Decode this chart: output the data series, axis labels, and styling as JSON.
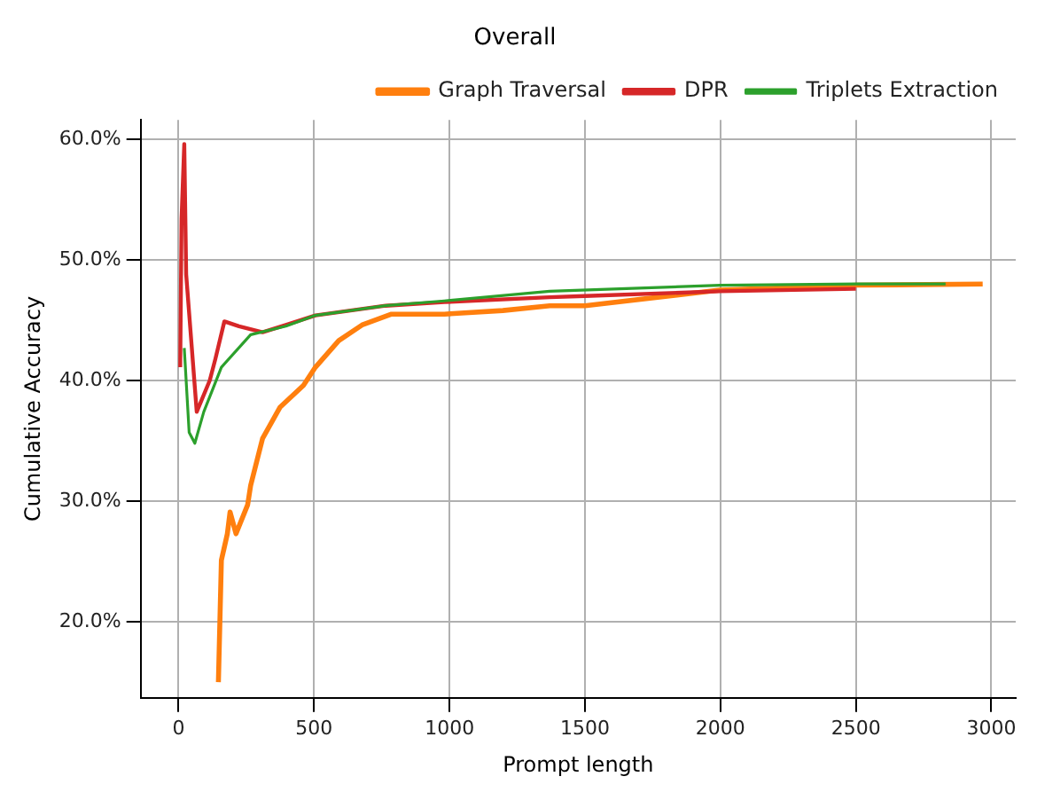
{
  "chart_data": {
    "type": "line",
    "title": "Overall",
    "xlabel": "Prompt length",
    "ylabel": "Cumulative Accuracy",
    "xlim": [
      -140,
      3090
    ],
    "xticks": [
      0,
      500,
      1000,
      1500,
      2000,
      2500,
      3000
    ],
    "ylim": [
      13.7,
      61.6
    ],
    "yticks": [
      {
        "value": 20,
        "label": "20.0%"
      },
      {
        "value": 30,
        "label": "30.0%"
      },
      {
        "value": 40,
        "label": "40.0%"
      },
      {
        "value": 50,
        "label": "50.0%"
      },
      {
        "value": 60,
        "label": "60.0%"
      }
    ],
    "grid": true,
    "legend": "top right",
    "marker": "none",
    "line_style": "solid",
    "series": [
      {
        "name": "Graph Traversal",
        "color": "#ff7f0e",
        "x": [
          147,
          158,
          180,
          190,
          212,
          255,
          266,
          310,
          375,
          461,
          505,
          591,
          677,
          786,
          981,
          1197,
          1370,
          1500,
          1998,
          2506,
          2968
        ],
        "values": [
          15.0,
          25.1,
          27.3,
          29.1,
          27.3,
          29.7,
          31.3,
          35.2,
          37.8,
          39.6,
          41.1,
          43.3,
          44.6,
          45.5,
          45.5,
          45.8,
          46.2,
          46.2,
          47.5,
          47.9,
          48.0
        ]
      },
      {
        "name": "DPR",
        "color": "#d62728",
        "x": [
          6,
          11,
          21,
          28,
          67,
          115,
          136,
          169,
          223,
          310,
          396,
          505,
          764,
          981,
          1370,
          1500,
          2000,
          2500
        ],
        "values": [
          41.1,
          53.4,
          59.6,
          48.8,
          37.4,
          40.0,
          41.8,
          44.9,
          44.5,
          44.0,
          44.6,
          45.4,
          46.2,
          46.5,
          46.9,
          47.0,
          47.4,
          47.6
        ]
      },
      {
        "name": "Triplets Extraction",
        "color": "#2ca02c",
        "x": [
          21,
          39,
          60,
          93,
          158,
          266,
          396,
          505,
          764,
          981,
          1370,
          1998,
          2506,
          2831
        ],
        "values": [
          42.7,
          35.7,
          34.8,
          37.4,
          41.1,
          43.8,
          44.5,
          45.4,
          46.2,
          46.6,
          47.4,
          47.9,
          48.0,
          48.0
        ]
      }
    ]
  }
}
